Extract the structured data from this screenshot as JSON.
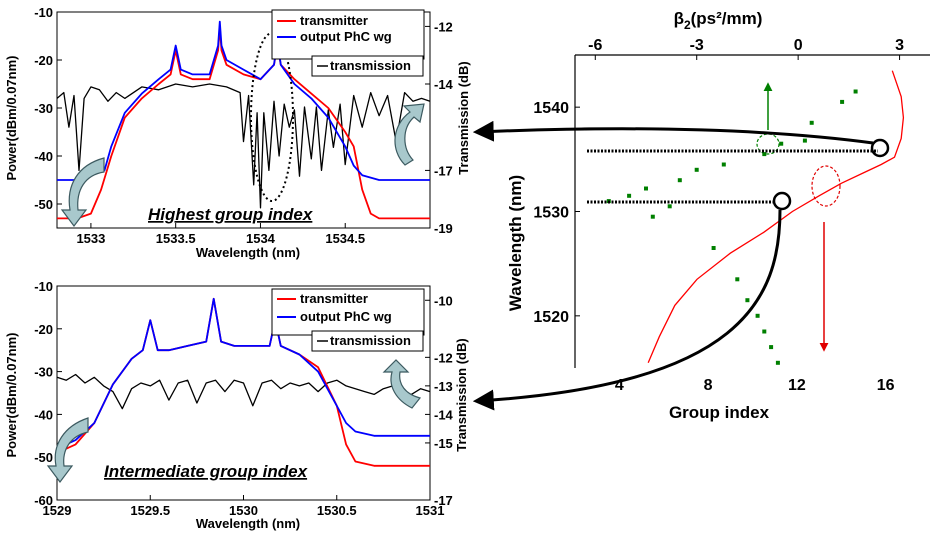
{
  "chart_data": [
    {
      "type": "line",
      "caption": "Highest group index",
      "xlabel": "Wavelength (nm)",
      "ylabel": "Power(dBm/0.07nm)",
      "y2label": "Transmission (dB)",
      "xlim": [
        1532.8,
        1535.0
      ],
      "ylim": [
        -55,
        -10
      ],
      "y2lim": [
        -19,
        -11.5
      ],
      "xticks": [
        "1533",
        "1533.5",
        "1534",
        "1534.5"
      ],
      "xtick_values": [
        1533,
        1533.5,
        1534,
        1534.5
      ],
      "yticks": [
        "-10",
        "-20",
        "-30",
        "-40",
        "-50"
      ],
      "ytick_values": [
        -10,
        -20,
        -30,
        -40,
        -50
      ],
      "y2ticks": [
        "-12",
        "-14",
        "-17",
        "-19"
      ],
      "y2tick_values": [
        -12,
        -14,
        -17,
        -19
      ],
      "legend": [
        "transmitter",
        "output PhC wg",
        "transmission"
      ],
      "series": [
        {
          "name": "transmitter",
          "color": "#ff0000",
          "axis": "left",
          "x": [
            1532.8,
            1532.92,
            1533.0,
            1533.06,
            1533.12,
            1533.2,
            1533.3,
            1533.4,
            1533.47,
            1533.5,
            1533.53,
            1533.6,
            1533.7,
            1533.75,
            1533.76,
            1533.77,
            1533.8,
            1533.9,
            1534.0,
            1534.08,
            1534.1,
            1534.12,
            1534.2,
            1534.3,
            1534.4,
            1534.5,
            1534.55,
            1534.6,
            1534.65,
            1534.7,
            1534.8,
            1534.9,
            1535.0
          ],
          "y": [
            -53,
            -53,
            -52,
            -47,
            -40,
            -32,
            -28,
            -25,
            -23,
            -18,
            -23,
            -24,
            -24,
            -18,
            -13,
            -18,
            -21,
            -23,
            -24,
            -21,
            -17,
            -21,
            -24,
            -27,
            -30,
            -35,
            -38,
            -47,
            -52,
            -53,
            -53,
            -53,
            -53
          ]
        },
        {
          "name": "output PhC wg",
          "color": "#0000ff",
          "axis": "left",
          "x": [
            1532.8,
            1532.92,
            1533.0,
            1533.08,
            1533.12,
            1533.2,
            1533.3,
            1533.4,
            1533.47,
            1533.5,
            1533.53,
            1533.6,
            1533.7,
            1533.75,
            1533.76,
            1533.77,
            1533.8,
            1533.9,
            1534.0,
            1534.08,
            1534.1,
            1534.12,
            1534.2,
            1534.3,
            1534.4,
            1534.5,
            1534.55,
            1534.6,
            1534.7,
            1534.8,
            1534.9,
            1535.0
          ],
          "y": [
            -45,
            -45,
            -44,
            -43,
            -38,
            -31,
            -27,
            -24,
            -22,
            -17,
            -22,
            -23,
            -23,
            -17,
            -12,
            -17,
            -20,
            -22,
            -24,
            -21,
            -16,
            -21,
            -25,
            -28,
            -32,
            -38,
            -42,
            -44,
            -45,
            -45,
            -45,
            -45
          ]
        },
        {
          "name": "transmission",
          "color": "#000000",
          "axis": "right",
          "x": [
            1532.8,
            1532.84,
            1532.87,
            1532.9,
            1532.93,
            1532.96,
            1533.0,
            1533.05,
            1533.1,
            1533.15,
            1533.2,
            1533.3,
            1533.4,
            1533.5,
            1533.6,
            1533.7,
            1533.8,
            1533.88,
            1533.9,
            1533.93,
            1533.96,
            1533.98,
            1534.0,
            1534.02,
            1534.05,
            1534.08,
            1534.11,
            1534.14,
            1534.17,
            1534.2,
            1534.23,
            1534.26,
            1534.3,
            1534.33,
            1534.36,
            1534.4,
            1534.43,
            1534.47,
            1534.5,
            1534.55,
            1534.6,
            1534.65,
            1534.7,
            1534.75,
            1534.8,
            1534.85,
            1534.9,
            1534.95,
            1535.0
          ],
          "y": [
            -14.5,
            -14.3,
            -15.5,
            -14.4,
            -17.0,
            -14.5,
            -14.1,
            -14.2,
            -14.6,
            -14.3,
            -14.5,
            -14.1,
            -14.2,
            -14.0,
            -14.1,
            -14.0,
            -14.1,
            -14.3,
            -16.0,
            -14.4,
            -17.5,
            -15.0,
            -18.3,
            -15.0,
            -17.0,
            -14.6,
            -16.5,
            -14.7,
            -15.5,
            -14.9,
            -17.2,
            -14.8,
            -16.6,
            -14.8,
            -17.0,
            -14.9,
            -16.2,
            -14.7,
            -16.8,
            -14.4,
            -15.5,
            -14.3,
            -15.1,
            -14.4,
            -16.0,
            -14.3,
            -14.6,
            -14.5,
            -14.6
          ]
        }
      ]
    },
    {
      "type": "line",
      "caption": "Intermediate group index",
      "xlabel": "Wavelength (nm)",
      "ylabel": "Power(dBm/0.07nm)",
      "y2label": "Transmission (dB)",
      "xlim": [
        1529,
        1531
      ],
      "ylim": [
        -60,
        -10
      ],
      "y2lim": [
        -17,
        -9.5
      ],
      "xticks": [
        "1529",
        "1529.5",
        "1530",
        "1530.5",
        "1531"
      ],
      "xtick_values": [
        1529,
        1529.5,
        1530,
        1530.5,
        1531
      ],
      "yticks": [
        "-10",
        "-20",
        "-30",
        "-40",
        "-50",
        "-60"
      ],
      "ytick_values": [
        -10,
        -20,
        -30,
        -40,
        -50,
        -60
      ],
      "y2ticks": [
        "-10",
        "-12",
        "-13",
        "-14",
        "-15",
        "-17"
      ],
      "y2tick_values": [
        -10,
        -12,
        -13,
        -14,
        -15,
        -17
      ],
      "legend": [
        "transmitter",
        "output PhC wg",
        "transmission"
      ],
      "series": [
        {
          "name": "transmitter",
          "color": "#ff0000",
          "axis": "left",
          "x": [
            1529.0,
            1529.1,
            1529.2,
            1529.3,
            1529.4,
            1529.46,
            1529.5,
            1529.54,
            1529.6,
            1529.7,
            1529.8,
            1529.84,
            1529.88,
            1529.95,
            1530.05,
            1530.14,
            1530.17,
            1530.2,
            1530.3,
            1530.4,
            1530.5,
            1530.55,
            1530.6,
            1530.7,
            1530.8,
            1531.0
          ],
          "y": [
            -49,
            -47,
            -42,
            -33,
            -27,
            -25,
            -18,
            -25,
            -25,
            -24,
            -23,
            -13,
            -23,
            -24,
            -24,
            -24,
            -18,
            -24,
            -26,
            -29,
            -38,
            -47,
            -51,
            -52,
            -52,
            -52
          ]
        },
        {
          "name": "output PhC wg",
          "color": "#0000ff",
          "axis": "left",
          "x": [
            1529.0,
            1529.1,
            1529.2,
            1529.3,
            1529.4,
            1529.46,
            1529.5,
            1529.54,
            1529.6,
            1529.7,
            1529.8,
            1529.84,
            1529.88,
            1529.95,
            1530.05,
            1530.14,
            1530.17,
            1530.2,
            1530.3,
            1530.4,
            1530.5,
            1530.55,
            1530.6,
            1530.7,
            1530.8,
            1531.0
          ],
          "y": [
            -48,
            -46,
            -42,
            -33,
            -27,
            -25,
            -18,
            -25,
            -25,
            -24,
            -23,
            -13,
            -23,
            -24,
            -24,
            -24,
            -18,
            -24,
            -26,
            -30,
            -38,
            -42,
            -44,
            -45,
            -45,
            -45
          ]
        },
        {
          "name": "transmission",
          "color": "#000000",
          "axis": "right",
          "x": [
            1529.0,
            1529.05,
            1529.1,
            1529.15,
            1529.2,
            1529.25,
            1529.3,
            1529.35,
            1529.4,
            1529.45,
            1529.5,
            1529.55,
            1529.6,
            1529.65,
            1529.7,
            1529.75,
            1529.8,
            1529.85,
            1529.9,
            1529.95,
            1530.0,
            1530.05,
            1530.1,
            1530.15,
            1530.2,
            1530.25,
            1530.3,
            1530.35,
            1530.4,
            1530.45,
            1530.5,
            1530.55,
            1530.6,
            1530.65,
            1530.7,
            1530.75,
            1530.8,
            1530.85,
            1530.9,
            1530.95,
            1531.0
          ],
          "y": [
            -12.7,
            -12.8,
            -12.6,
            -12.9,
            -12.7,
            -13.0,
            -13.2,
            -13.8,
            -13.1,
            -12.9,
            -13.0,
            -12.8,
            -13.5,
            -12.9,
            -12.8,
            -13.6,
            -12.9,
            -12.8,
            -13.2,
            -12.8,
            -12.9,
            -13.7,
            -12.9,
            -12.8,
            -13.1,
            -12.9,
            -13.0,
            -12.9,
            -13.2,
            -12.9,
            -12.8,
            -13.0,
            -13.1,
            -13.2,
            -13.3,
            -13.1,
            -13.0,
            -13.2,
            -13.3,
            -13.1,
            -13.2
          ]
        }
      ]
    },
    {
      "type": "scatter",
      "xlabel": "Group index",
      "ylabel": "Wavelength (nm)",
      "x2label": "β2(ps²/mm)",
      "xlim": [
        2,
        18
      ],
      "ylim": [
        1515,
        1545
      ],
      "x2lim": [
        -6.6,
        3.9
      ],
      "xticks": [
        "4",
        "8",
        "12",
        "16"
      ],
      "xtick_values": [
        4,
        8,
        12,
        16
      ],
      "yticks": [
        "1540",
        "1530",
        "1520"
      ],
      "ytick_values": [
        1540,
        1530,
        1520
      ],
      "x2ticks": [
        "-6",
        "-3",
        "0",
        "3"
      ],
      "x2tick_values": [
        -6,
        -3,
        0,
        3
      ],
      "series": [
        {
          "name": "group index",
          "color": "#ff0000",
          "style": "line",
          "x": [
            5.3,
            5.8,
            6.5,
            7.5,
            9.0,
            10.5,
            11.8,
            13.0,
            14.0,
            15.0,
            15.8,
            16.4,
            16.7,
            16.8,
            16.7,
            16.3
          ],
          "y": [
            1515.5,
            1518,
            1521,
            1523.5,
            1526,
            1528,
            1530,
            1531.5,
            1532.7,
            1533.7,
            1534.5,
            1535.2,
            1537,
            1539,
            1541,
            1543.5
          ]
        },
        {
          "name": "β2",
          "color": "#008000",
          "style": "markers",
          "x": [
            1.7,
            1.3,
            0.4,
            0.2,
            -0.5,
            -1.0,
            -2.2,
            -3.0,
            -3.5,
            -4.5,
            -5.0,
            -5.6,
            -3.8,
            -4.3,
            -2.5,
            -1.8,
            -1.5,
            -1.2,
            -1.0,
            -0.8,
            -0.6
          ],
          "y": [
            1541.5,
            1540.5,
            1538.5,
            1536.8,
            1536.5,
            1535.5,
            1534.5,
            1534,
            1533,
            1532.2,
            1531.5,
            1531,
            1530.5,
            1529.5,
            1526.5,
            1523.5,
            1521.5,
            1520,
            1518.5,
            1517,
            1515.5
          ]
        }
      ]
    }
  ]
}
